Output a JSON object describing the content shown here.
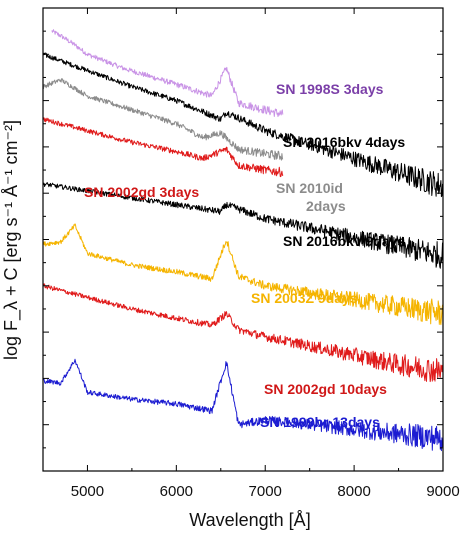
{
  "chart_data": {
    "type": "line",
    "xlabel": "Wavelength  [Å]",
    "ylabel": "log F_λ + C  [erg s⁻¹ Å⁻¹ cm⁻²]",
    "xlim": [
      4500,
      9000
    ],
    "x_ticks": [
      5000,
      6000,
      7000,
      8000,
      9000
    ],
    "x_tick_labels": [
      "5000",
      "6000",
      "7000",
      "8000",
      "9000"
    ],
    "ylim": [
      0,
      10
    ],
    "y_tick_labels_shown": false,
    "grid": false,
    "legend": "inline labels next to each spectrum",
    "series": [
      {
        "name": "SN 1998S 3days",
        "color": "#c993e6",
        "x_range": [
          4600,
          7200
        ],
        "x": [
          4600,
          4700,
          4860,
          5000,
          5400,
          6000,
          6400,
          6563,
          6700,
          7000,
          7200
        ],
        "y": [
          9.5,
          9.4,
          9.2,
          9.0,
          8.7,
          8.35,
          8.1,
          8.7,
          7.95,
          7.8,
          7.7
        ]
      },
      {
        "name": "SN 2016bkv 4days",
        "color": "#000000",
        "x_range": [
          4500,
          9000
        ],
        "x": [
          4500,
          5000,
          5500,
          6000,
          6500,
          6563,
          7000,
          7500,
          8000,
          8500,
          9000
        ],
        "y": [
          9.0,
          8.65,
          8.3,
          8.0,
          7.6,
          7.75,
          7.35,
          7.05,
          6.75,
          6.45,
          6.15
        ]
      },
      {
        "name": "SN 2010id 2days",
        "color": "#8c8c8c",
        "x_range": [
          4500,
          7200
        ],
        "x": [
          4500,
          4700,
          5000,
          5500,
          6000,
          6300,
          6500,
          6700,
          7000,
          7200
        ],
        "y": [
          8.3,
          8.45,
          8.1,
          7.8,
          7.5,
          7.2,
          7.3,
          6.95,
          6.85,
          6.8
        ]
      },
      {
        "name": "SN 2002gd 3days",
        "color": "#e01b1b",
        "x_range": [
          4500,
          7200
        ],
        "x": [
          4500,
          5000,
          5500,
          6000,
          6300,
          6563,
          6700,
          7000,
          7200
        ],
        "y": [
          7.6,
          7.35,
          7.1,
          6.9,
          6.75,
          6.95,
          6.6,
          6.5,
          6.45
        ]
      },
      {
        "name": "SN 2016bkv 9days",
        "color": "#000000",
        "x_range": [
          4500,
          9000
        ],
        "x": [
          4500,
          5000,
          5500,
          6000,
          6500,
          6563,
          7000,
          7500,
          8000,
          8500,
          9000
        ],
        "y": [
          6.2,
          6.05,
          5.9,
          5.75,
          5.6,
          5.75,
          5.45,
          5.25,
          5.05,
          4.85,
          4.65
        ]
      },
      {
        "name": "SN 2003Z 9days",
        "color": "#f5b400",
        "x_range": [
          4500,
          9000
        ],
        "x": [
          4500,
          4700,
          4860,
          5000,
          5500,
          6000,
          6400,
          6563,
          6700,
          7000,
          7500,
          8000,
          8500,
          9000
        ],
        "y": [
          4.9,
          4.95,
          5.3,
          4.7,
          4.45,
          4.3,
          4.15,
          5.0,
          4.2,
          4.0,
          3.85,
          3.7,
          3.55,
          3.4
        ]
      },
      {
        "name": "SN 2002gd 10days",
        "color": "#e01b1b",
        "x_range": [
          4500,
          9000
        ],
        "x": [
          4500,
          5000,
          5500,
          6000,
          6400,
          6563,
          6700,
          7000,
          7500,
          8000,
          8500,
          9000
        ],
        "y": [
          4.0,
          3.75,
          3.5,
          3.3,
          3.15,
          3.4,
          3.05,
          2.9,
          2.7,
          2.5,
          2.3,
          2.15
        ]
      },
      {
        "name": "SN 1999br 13days",
        "color": "#1c1cd1",
        "x_range": [
          4500,
          9000
        ],
        "x": [
          4500,
          4700,
          4860,
          5000,
          5500,
          6000,
          6400,
          6563,
          6700,
          7000,
          7500,
          8000,
          8500,
          9000
        ],
        "y": [
          1.95,
          1.9,
          2.4,
          1.7,
          1.55,
          1.45,
          1.3,
          2.35,
          1.0,
          1.1,
          1.0,
          0.9,
          0.8,
          0.7
        ]
      }
    ],
    "label_lines": [
      {
        "series": 0,
        "lines": [
          "SN 1998S 3days"
        ],
        "color": "#7b3fa8"
      },
      {
        "series": 1,
        "lines": [
          "SN 2016bkv 4days"
        ],
        "color": "#000000"
      },
      {
        "series": 2,
        "lines": [
          "SN 2010id",
          "2days"
        ],
        "color": "#8c8c8c"
      },
      {
        "series": 3,
        "lines": [
          "SN 2002gd 3days"
        ],
        "color": "#d01818"
      },
      {
        "series": 4,
        "lines": [
          "SN 2016bkv 9days"
        ],
        "color": "#000000"
      },
      {
        "series": 5,
        "lines": [
          "SN 2003Z 9days"
        ],
        "color": "#f5b400"
      },
      {
        "series": 6,
        "lines": [
          "SN 2002gd 10days"
        ],
        "color": "#d01818"
      },
      {
        "series": 7,
        "lines": [
          "SN 1999br 13days"
        ],
        "color": "#1c1cd1"
      }
    ]
  }
}
